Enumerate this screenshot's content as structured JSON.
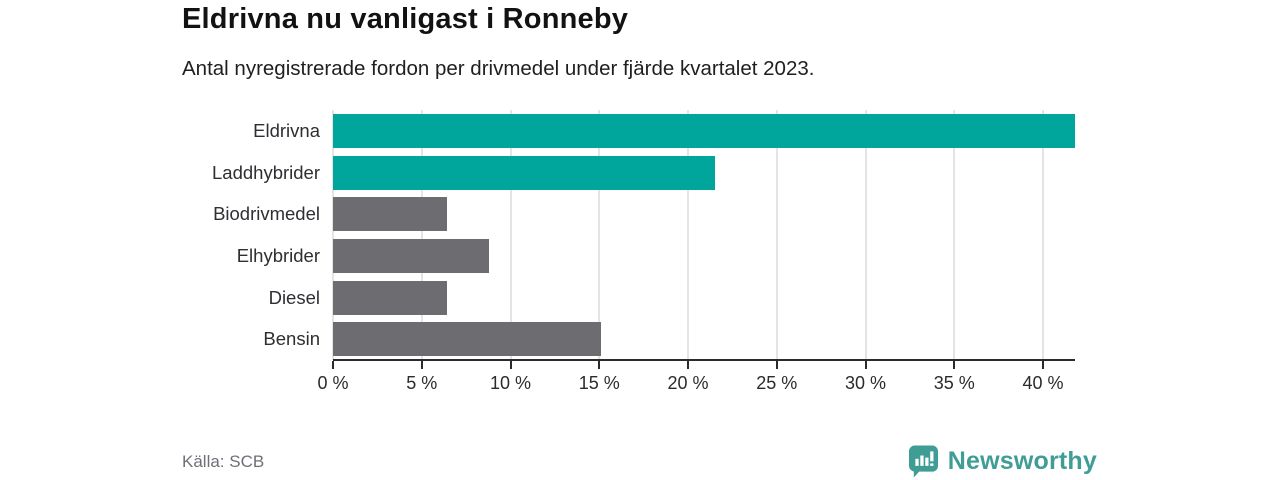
{
  "header": {
    "title": "Eldrivna nu vanligast i Ronneby",
    "subtitle": "Antal nyregistrerade fordon per drivmedel under fjärde kvartalet 2023."
  },
  "chart_data": {
    "type": "bar",
    "orientation": "horizontal",
    "title": "Eldrivna nu vanligast i Ronneby",
    "subtitle": "Antal nyregistrerade fordon per drivmedel under fjärde kvartalet 2023.",
    "categories": [
      "Eldrivna",
      "Laddhybrider",
      "Biodrivmedel",
      "Elhybrider",
      "Diesel",
      "Bensin"
    ],
    "values": [
      41.8,
      21.5,
      6.4,
      8.8,
      6.4,
      15.1
    ],
    "unit": "%",
    "xlim": [
      0,
      41.8
    ],
    "x_ticks": [
      0,
      5,
      10,
      15,
      20,
      25,
      30,
      35,
      40
    ],
    "tick_suffix": " %",
    "bar_colors": [
      "#00a59b",
      "#00a59b",
      "#6c6c71",
      "#6c6c71",
      "#6c6c71",
      "#6c6c71"
    ],
    "grid": true,
    "legend": "none"
  },
  "colors": {
    "teal": "#00a59b",
    "gray": "#6c6c71",
    "gridline": "#e4e4e7",
    "axis": "#2b2b2b",
    "brand_teal": "#3f9d96"
  },
  "footer": {
    "source": "Källa: SCB",
    "brand_name": "Newsworthy",
    "brand_icon": "bar-chart-speech-bubble-icon"
  }
}
